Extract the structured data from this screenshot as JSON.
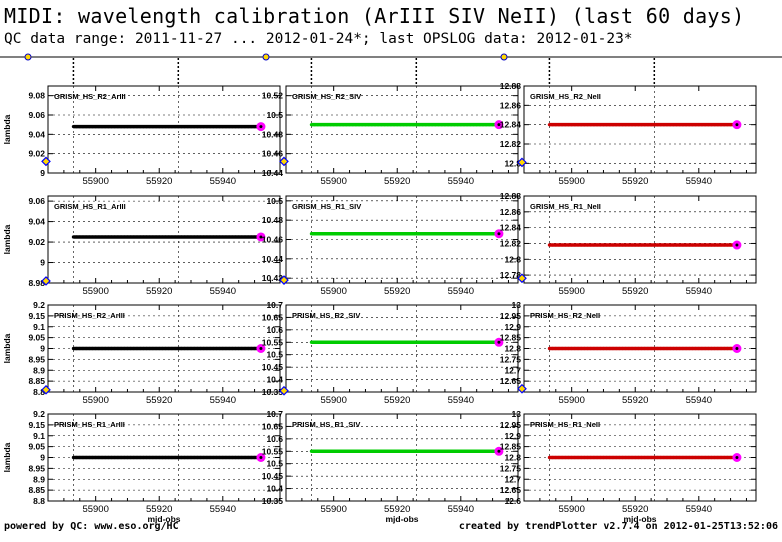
{
  "header": {
    "title": "MIDI: wavelength calibration (ArIII SIV NeII) (last 60 days)",
    "subtitle": "QC data range: 2011-11-27 ... 2012-01-24*; last OPSLOG data: 2012-01-23*"
  },
  "footer": {
    "left": "powered by QC: www.eso.org/HC",
    "right": "created by trendPlotter v2.7.4 on 2012-01-25T13:52:06"
  },
  "colors": {
    "ArIII": "#000000",
    "SIV": "#00cc00",
    "NeII": "#cc0000",
    "last_point": "#ff00ff",
    "outlier_marker": "#0000ff"
  },
  "chart_data": [
    {
      "type": "scatter",
      "label": "GRISM_HS_R2_ArIII",
      "xlabel": "",
      "ylabel": "lambda",
      "xlim": [
        55885,
        55958
      ],
      "xticks": [
        55900,
        55920,
        55940
      ],
      "ylim": [
        9,
        9.09
      ],
      "yticks": [
        "9",
        "9.02",
        "9.04",
        "9.06",
        "9.08"
      ],
      "x_range": [
        55893,
        55952
      ],
      "value": 9.048,
      "series_color": "#000000",
      "last_point": [
        55952,
        9.048
      ],
      "outlier_marker": [
        55885,
        9.012
      ]
    },
    {
      "type": "scatter",
      "label": "GRISM_HS_R2_SIV",
      "xlabel": "",
      "ylabel": "",
      "xlim": [
        55885,
        55958
      ],
      "xticks": [
        55900,
        55920,
        55940
      ],
      "ylim": [
        10.44,
        10.53
      ],
      "yticks": [
        "10.44",
        "10.46",
        "10.48",
        "10.5",
        "10.52"
      ],
      "x_range": [
        55893,
        55952
      ],
      "value": 10.49,
      "series_color": "#00cc00",
      "last_point": [
        55952,
        10.49
      ],
      "outlier_marker": [
        55885,
        10.452
      ]
    },
    {
      "type": "scatter",
      "label": "GRISM_HS_R2_NeII",
      "xlabel": "",
      "ylabel": "",
      "xlim": [
        55885,
        55958
      ],
      "xticks": [
        55900,
        55920,
        55940
      ],
      "ylim": [
        12.79,
        12.88
      ],
      "yticks": [
        "12.8",
        "12.82",
        "12.84",
        "12.86",
        "12.88"
      ],
      "x_range": [
        55893,
        55952
      ],
      "value": 12.84,
      "series_color": "#cc0000",
      "last_point": [
        55952,
        12.84
      ],
      "outlier_marker": [
        55885,
        12.801
      ]
    },
    {
      "type": "scatter",
      "label": "GRISM_HS_R1_ArIII",
      "xlabel": "",
      "ylabel": "lambda",
      "xlim": [
        55885,
        55958
      ],
      "xticks": [
        55900,
        55920,
        55940
      ],
      "ylim": [
        8.98,
        9.065
      ],
      "yticks": [
        "8.98",
        "9",
        "9.02",
        "9.04",
        "9.06"
      ],
      "x_range": [
        55893,
        55952
      ],
      "value": 9.025,
      "series_color": "#000000",
      "last_point": [
        55952,
        9.025
      ],
      "outlier_marker": [
        55885,
        8.982
      ]
    },
    {
      "type": "scatter",
      "label": "GRISM_HS_R1_SIV",
      "xlabel": "",
      "ylabel": "",
      "xlim": [
        55885,
        55958
      ],
      "xticks": [
        55900,
        55920,
        55940
      ],
      "ylim": [
        10.415,
        10.505
      ],
      "yticks": [
        "10.42",
        "10.44",
        "10.46",
        "10.48",
        "10.5"
      ],
      "x_range": [
        55893,
        55952
      ],
      "value": 10.466,
      "series_color": "#00cc00",
      "last_point": [
        55952,
        10.466
      ],
      "outlier_marker": [
        55885,
        10.418
      ]
    },
    {
      "type": "scatter",
      "label": "GRISM_HS_R1_NeII",
      "xlabel": "",
      "ylabel": "",
      "xlim": [
        55885,
        55958
      ],
      "xticks": [
        55900,
        55920,
        55940
      ],
      "ylim": [
        12.77,
        12.88
      ],
      "yticks": [
        "12.78",
        "12.8",
        "12.82",
        "12.84",
        "12.86",
        "12.88"
      ],
      "x_range": [
        55893,
        55952
      ],
      "value": 12.818,
      "series_color": "#cc0000",
      "last_point": [
        55952,
        12.818
      ],
      "outlier_marker": [
        55885,
        12.776
      ]
    },
    {
      "type": "scatter",
      "label": "PRISM_HS_R2_ArIII",
      "xlabel": "",
      "ylabel": "lambda",
      "xlim": [
        55885,
        55958
      ],
      "xticks": [
        55900,
        55920,
        55940
      ],
      "ylim": [
        8.8,
        9.2
      ],
      "yticks": [
        "8.8",
        "8.85",
        "8.9",
        "8.95",
        "9",
        "9.05",
        "9.1",
        "9.15",
        "9.2"
      ],
      "x_range": [
        55893,
        55952
      ],
      "value": 9.0,
      "series_color": "#000000",
      "last_point": [
        55952,
        9.0
      ],
      "outlier_marker": [
        55885,
        8.81
      ]
    },
    {
      "type": "scatter",
      "label": "PRISM_HS_R2_SIV",
      "xlabel": "",
      "ylabel": "",
      "xlim": [
        55885,
        55958
      ],
      "xticks": [
        55900,
        55920,
        55940
      ],
      "ylim": [
        10.35,
        10.7
      ],
      "yticks": [
        "10.35",
        "10.4",
        "10.45",
        "10.5",
        "10.55",
        "10.6",
        "10.65",
        "10.7"
      ],
      "x_range": [
        55893,
        55952
      ],
      "value": 10.55,
      "series_color": "#00cc00",
      "last_point": [
        55952,
        10.55
      ],
      "outlier_marker": [
        55885,
        10.355
      ]
    },
    {
      "type": "scatter",
      "label": "PRISM_HS_R2_NeII",
      "xlabel": "",
      "ylabel": "",
      "xlim": [
        55885,
        55958
      ],
      "xticks": [
        55900,
        55920,
        55940
      ],
      "ylim": [
        12.6,
        13
      ],
      "yticks": [
        "12.65",
        "12.7",
        "12.75",
        "12.8",
        "12.85",
        "12.9",
        "12.95",
        "13"
      ],
      "x_range": [
        55893,
        55952
      ],
      "value": 12.8,
      "series_color": "#cc0000",
      "last_point": [
        55952,
        12.8
      ],
      "outlier_marker": [
        55885,
        12.615
      ]
    },
    {
      "type": "scatter",
      "label": "PRISM_HS_R1_ArIII",
      "xlabel": "mjd-obs",
      "ylabel": "lambda",
      "xlim": [
        55885,
        55958
      ],
      "xticks": [
        55900,
        55920,
        55940
      ],
      "ylim": [
        8.8,
        9.2
      ],
      "yticks": [
        "8.8",
        "8.85",
        "8.9",
        "8.95",
        "9",
        "9.05",
        "9.1",
        "9.15",
        "9.2"
      ],
      "x_range": [
        55893,
        55952
      ],
      "value": 9.0,
      "series_color": "#000000",
      "last_point": [
        55952,
        9.0
      ],
      "outlier_marker": null
    },
    {
      "type": "scatter",
      "label": "PRISM_HS_R1_SIV",
      "xlabel": "mjd-obs",
      "ylabel": "",
      "xlim": [
        55885,
        55958
      ],
      "xticks": [
        55900,
        55920,
        55940
      ],
      "ylim": [
        10.35,
        10.7
      ],
      "yticks": [
        "10.35",
        "10.4",
        "10.45",
        "10.5",
        "10.55",
        "10.6",
        "10.65",
        "10.7"
      ],
      "x_range": [
        55893,
        55952
      ],
      "value": 10.55,
      "series_color": "#00cc00",
      "last_point": [
        55952,
        10.55
      ],
      "outlier_marker": null
    },
    {
      "type": "scatter",
      "label": "PRISM_HS_R1_NeII",
      "xlabel": "mjd-obs",
      "ylabel": "",
      "xlim": [
        55885,
        55958
      ],
      "xticks": [
        55900,
        55920,
        55940
      ],
      "ylim": [
        12.6,
        13
      ],
      "yticks": [
        "12.6",
        "12.65",
        "12.7",
        "12.75",
        "12.8",
        "12.85",
        "12.9",
        "12.95",
        "13"
      ],
      "x_range": [
        55893,
        55952
      ],
      "value": 12.8,
      "series_color": "#cc0000",
      "last_point": [
        55952,
        12.8
      ],
      "outlier_marker": null
    }
  ]
}
